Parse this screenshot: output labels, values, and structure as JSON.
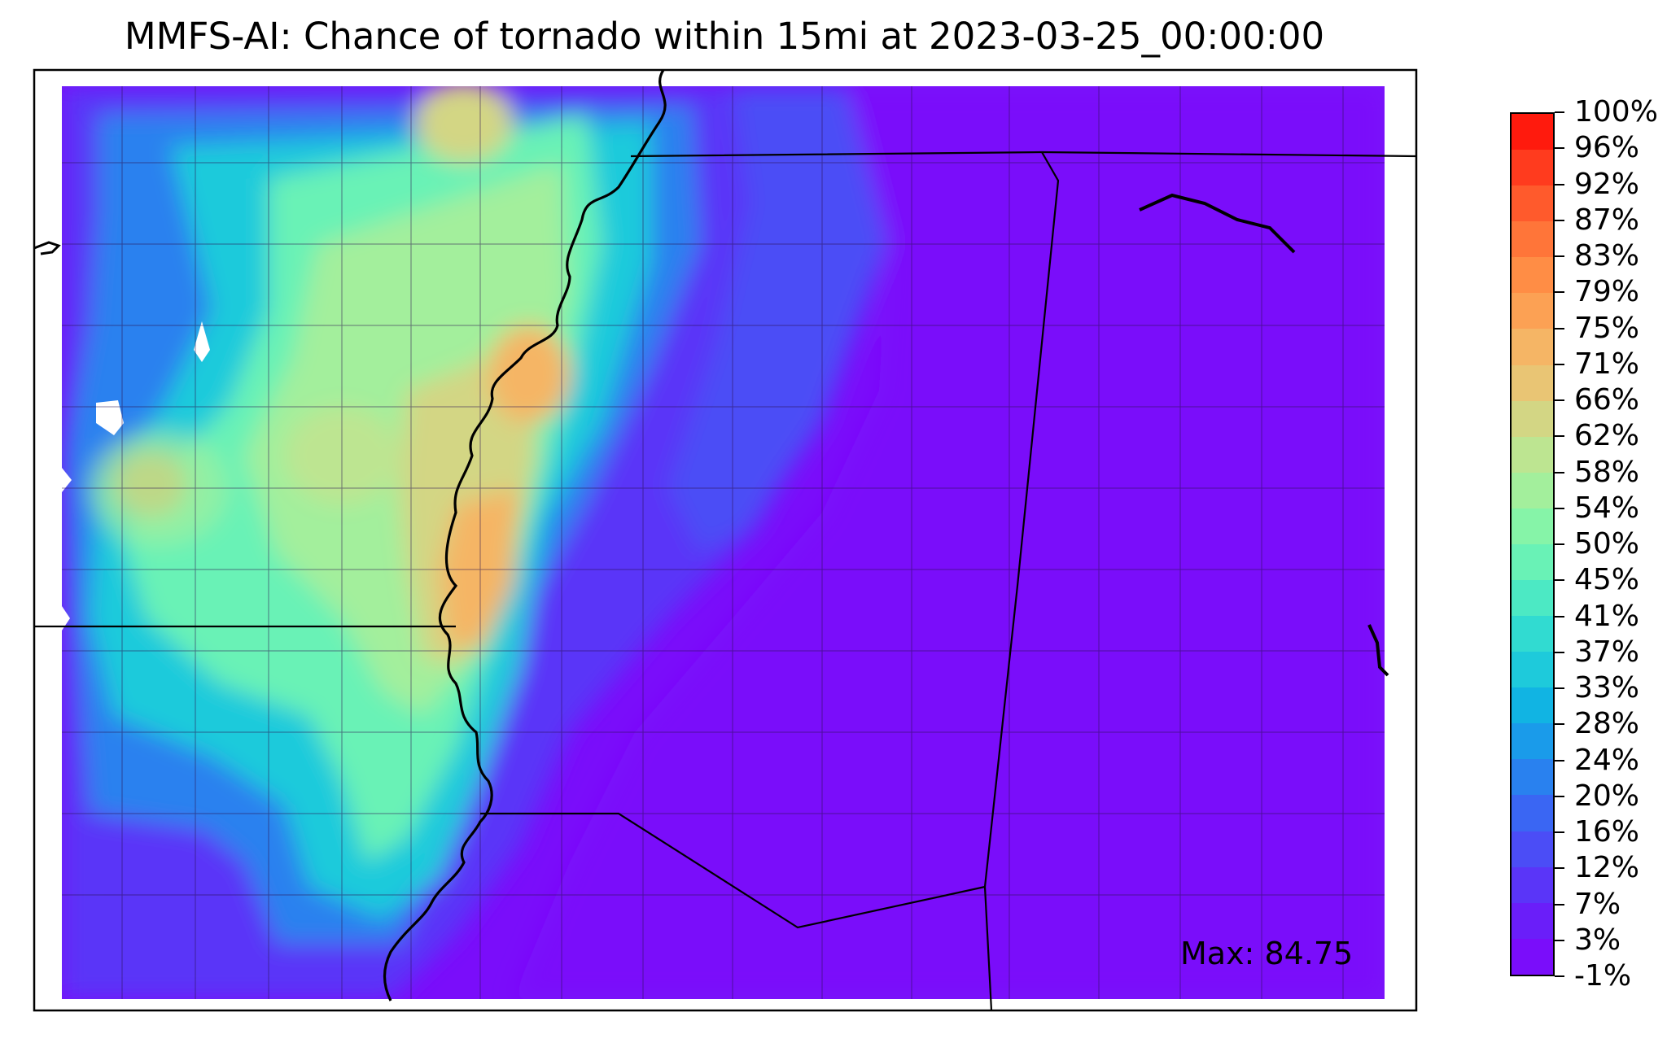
{
  "title": "MMFS-AI: Chance of tornado within 15mi at 2023-03-25_00:00:00",
  "max_label": "Max: 84.75",
  "colorbar": {
    "ticks": [
      "100%",
      "96%",
      "92%",
      "87%",
      "83%",
      "79%",
      "75%",
      "71%",
      "66%",
      "62%",
      "58%",
      "54%",
      "50%",
      "45%",
      "41%",
      "37%",
      "33%",
      "28%",
      "24%",
      "20%",
      "16%",
      "12%",
      "7%",
      "3%",
      "-1%"
    ],
    "colors": [
      "#ff1a0d",
      "#ff3b1e",
      "#ff5a2c",
      "#ff7539",
      "#ff8d45",
      "#fca154",
      "#f5b565",
      "#e9c574",
      "#d3d684",
      "#bde591",
      "#a3ef9c",
      "#86f4a8",
      "#69f2b6",
      "#4ce9c4",
      "#31dbd1",
      "#1ecadb",
      "#11b4e3",
      "#1a9bea",
      "#2981ef",
      "#3a66f3",
      "#4b4df6",
      "#5a35f8",
      "#6a1ef9",
      "#7a0dfa"
    ]
  },
  "chart_data": {
    "type": "heatmap",
    "title": "MMFS-AI: Chance of tornado within 15mi at 2023-03-25_00:00:00",
    "variable": "Chance of tornado within 15mi",
    "valid_time": "2023-03-25_00:00:00",
    "max_value": 84.75,
    "levels_percent": [
      -1,
      3,
      7,
      12,
      16,
      20,
      24,
      28,
      33,
      37,
      41,
      45,
      50,
      54,
      58,
      62,
      66,
      71,
      75,
      79,
      83,
      87,
      92,
      96,
      100
    ],
    "tick_labels": [
      "-1%",
      "3%",
      "7%",
      "12%",
      "16%",
      "20%",
      "24%",
      "28%",
      "33%",
      "37%",
      "41%",
      "45%",
      "50%",
      "54%",
      "58%",
      "62%",
      "66%",
      "71%",
      "75%",
      "79%",
      "83%",
      "87%",
      "92%",
      "96%",
      "100%"
    ],
    "colormap": "rainbow",
    "colorbar_position": "right",
    "max_label_position": "bottom-right"
  }
}
